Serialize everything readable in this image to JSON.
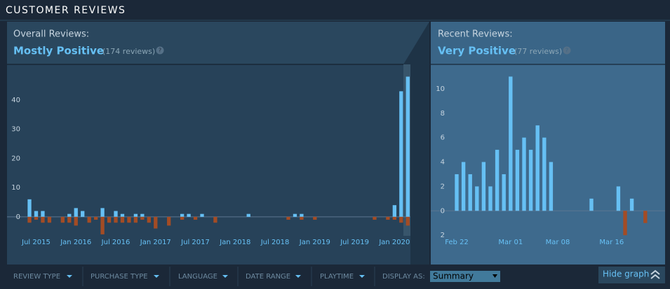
{
  "header": {
    "title": "CUSTOMER REVIEWS"
  },
  "overall": {
    "label": "Overall Reviews:",
    "rating": "Mostly Positive",
    "count": "(174 reviews)",
    "help": "?"
  },
  "recent": {
    "label": "Recent Reviews:",
    "rating": "Very Positive",
    "count": "(77 reviews)",
    "help": "?"
  },
  "chart_data": [
    {
      "type": "bar",
      "categories": [
        null,
        "Jul 2015",
        null,
        null,
        null,
        null,
        null,
        "Jan 2016",
        null,
        null,
        null,
        null,
        null,
        "Jul 2016",
        null,
        null,
        null,
        null,
        null,
        "Jan 2017",
        null,
        null,
        null,
        null,
        null,
        "Jul 2017",
        null,
        null,
        null,
        null,
        null,
        "Jan 2018",
        null,
        null,
        null,
        null,
        null,
        "Jul 2018",
        null,
        null,
        null,
        null,
        null,
        "Jan 2019",
        null,
        null,
        null,
        null,
        null,
        "Jul 2019",
        null,
        null,
        null,
        null,
        null,
        "Jan 2020",
        null,
        null
      ],
      "series": [
        {
          "color": "#66c0f4",
          "values": [
            6,
            2,
            2,
            0,
            0,
            0,
            1,
            3,
            2,
            0,
            0,
            3,
            0,
            2,
            1,
            0,
            1,
            1,
            0,
            0,
            0,
            0,
            0,
            1,
            1,
            0,
            1,
            0,
            0,
            0,
            0,
            0,
            0,
            1,
            0,
            0,
            0,
            0,
            0,
            0,
            1,
            1,
            0,
            0,
            0,
            0,
            0,
            0,
            0,
            0,
            0,
            0,
            0,
            0,
            0,
            4,
            43,
            48
          ]
        },
        {
          "color": "#a34c25",
          "values": [
            -2,
            -1,
            -2,
            -2,
            0,
            -2,
            -2,
            -3,
            0,
            -2,
            -1,
            -6,
            -2,
            -2,
            -2,
            -2,
            -2,
            -1,
            -2,
            -4,
            0,
            -3,
            0,
            -1,
            0,
            -1,
            0,
            0,
            -2,
            0,
            0,
            0,
            0,
            0,
            0,
            0,
            0,
            0,
            0,
            -1,
            0,
            -1,
            0,
            -1,
            0,
            0,
            0,
            0,
            0,
            0,
            0,
            0,
            -1,
            0,
            -1,
            -1,
            -2,
            -3
          ]
        }
      ],
      "ylim": [
        -6.5,
        52.2
      ],
      "yticks": [
        0,
        10,
        20,
        30,
        40
      ]
    },
    {
      "type": "bar",
      "categories": [
        "Feb 22",
        null,
        null,
        null,
        null,
        null,
        null,
        null,
        "Mar 01",
        null,
        null,
        null,
        null,
        null,
        null,
        "Mar 08",
        null,
        null,
        null,
        null,
        null,
        null,
        null,
        "Mar 16",
        null,
        null,
        null,
        null,
        null
      ],
      "series": [
        {
          "color": "#66c0f4",
          "values": [
            3,
            4,
            3,
            2,
            4,
            2,
            5,
            3,
            11,
            5,
            6,
            5,
            7,
            6,
            4,
            0,
            0,
            0,
            0,
            0,
            1,
            0,
            0,
            0,
            2,
            0,
            1,
            0,
            0
          ]
        },
        {
          "color": "#a34c25",
          "values": [
            0,
            0,
            0,
            0,
            0,
            0,
            0,
            0,
            0,
            0,
            0,
            0,
            0,
            0,
            0,
            0,
            0,
            0,
            0,
            0,
            0,
            0,
            0,
            0,
            0,
            -2,
            0,
            0,
            -1
          ]
        }
      ],
      "ylim": [
        -4.4,
        12
      ],
      "yticks": [
        {
          "value": -2,
          "label": "2"
        },
        0,
        2,
        4,
        6,
        8,
        10
      ]
    }
  ],
  "filters": {
    "review_type": "REVIEW TYPE",
    "purchase_type": "PURCHASE TYPE",
    "language": "LANGUAGE",
    "date_range": "DATE RANGE",
    "playtime": "PLAYTIME",
    "display_as": "DISPLAY AS:",
    "display_value": "Summary",
    "hide_graph": "Hide graph"
  }
}
